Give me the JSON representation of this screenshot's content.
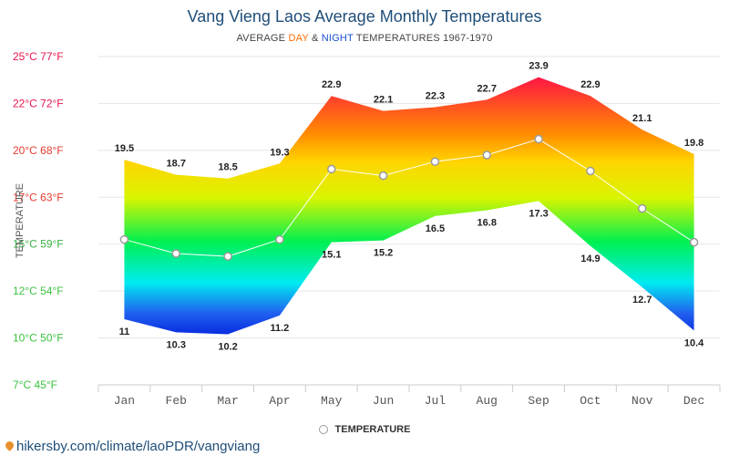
{
  "header": {
    "title": "Vang Vieng Laos Average Monthly Temperatures",
    "subtitle_prefix": "AVERAGE ",
    "subtitle_day": "DAY",
    "subtitle_amp": " & ",
    "subtitle_night": "NIGHT",
    "subtitle_suffix": " TEMPERATURES 1967-1970"
  },
  "legend": {
    "label": "TEMPERATURE"
  },
  "footer": {
    "source": "hikersby.com/climate/laoPDR/vangviang"
  },
  "colors": {
    "title": "#1f4e79",
    "day": "#ff6a00",
    "night": "#1a4fcf",
    "temp_line": "#ffffff"
  },
  "chart_data": {
    "type": "area",
    "title": "Vang Vieng Laos Average Monthly Temperatures",
    "subtitle": "AVERAGE DAY & NIGHT TEMPERATURES 1967-1970",
    "ylabel": "TEMPERATURE",
    "categories": [
      "Jan",
      "Feb",
      "Mar",
      "Apr",
      "May",
      "Jun",
      "Jul",
      "Aug",
      "Sep",
      "Oct",
      "Nov",
      "Dec"
    ],
    "y_ticks": [
      {
        "value": 25,
        "label": "25°C 77°F"
      },
      {
        "value": 22.5,
        "label": "22°C 72°F"
      },
      {
        "value": 20,
        "label": "20°C 68°F"
      },
      {
        "value": 17.5,
        "label": "17°C 63°F"
      },
      {
        "value": 15,
        "label": "15°C 59°F"
      },
      {
        "value": 12.5,
        "label": "12°C 54°F"
      },
      {
        "value": 10,
        "label": "10°C 50°F"
      },
      {
        "value": 7.5,
        "label": "7°C 45°F"
      }
    ],
    "ylim": [
      7.5,
      25
    ],
    "grid": true,
    "series": [
      {
        "name": "DAY",
        "values": [
          19.5,
          18.7,
          18.5,
          19.3,
          22.9,
          22.1,
          22.3,
          22.7,
          23.9,
          22.9,
          21.1,
          19.8
        ]
      },
      {
        "name": "NIGHT",
        "values": [
          11,
          10.3,
          10.2,
          11.2,
          15.1,
          15.2,
          16.5,
          16.8,
          17.3,
          14.9,
          12.7,
          10.4
        ]
      },
      {
        "name": "TEMPERATURE",
        "values": [
          15.25,
          14.5,
          14.35,
          15.25,
          19.0,
          18.65,
          19.4,
          19.75,
          20.6,
          18.9,
          16.9,
          15.1
        ]
      }
    ]
  }
}
